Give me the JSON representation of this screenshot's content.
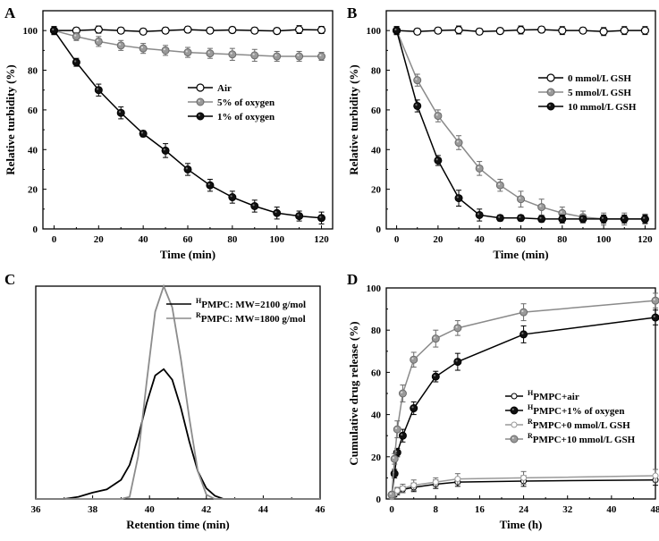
{
  "chart_data": [
    {
      "panel": "A",
      "type": "line",
      "xlabel": "Time (min)",
      "ylabel": "Relative turbidity (%)",
      "xlim": [
        -5,
        125
      ],
      "ylim": [
        0,
        110
      ],
      "xticks": [
        0,
        20,
        40,
        60,
        80,
        100,
        120
      ],
      "yticks": [
        0,
        20,
        40,
        60,
        80,
        100
      ],
      "legend_position": "middle-right",
      "series": [
        {
          "name": "Air",
          "marker": "open-circle",
          "color": "#000000",
          "x": [
            0,
            10,
            20,
            30,
            40,
            50,
            60,
            70,
            80,
            90,
            100,
            110,
            120
          ],
          "y": [
            100,
            100,
            100.5,
            100,
            99.5,
            100,
            100.5,
            100,
            100.3,
            100,
            99.8,
            100.5,
            100.3
          ],
          "err": [
            2,
            1.5,
            1.8,
            1.5,
            1.5,
            1.5,
            1.5,
            1.5,
            1.5,
            1.5,
            1.5,
            2,
            1.8
          ]
        },
        {
          "name": "5% of oxygen",
          "marker": "gray-circle",
          "color": "#8a8a8a",
          "x": [
            0,
            10,
            20,
            30,
            40,
            50,
            60,
            70,
            80,
            90,
            100,
            110,
            120
          ],
          "y": [
            100,
            97,
            94.5,
            92.5,
            91,
            90,
            89,
            88.5,
            88,
            87.5,
            87,
            87,
            87
          ],
          "err": [
            2,
            2,
            2.5,
            2.5,
            2.5,
            2.5,
            2.5,
            2.5,
            3,
            3,
            2.5,
            2.5,
            2
          ]
        },
        {
          "name": "1% of oxygen",
          "marker": "black-circle",
          "color": "#000000",
          "x": [
            0,
            10,
            20,
            30,
            40,
            50,
            60,
            70,
            80,
            90,
            100,
            110,
            120
          ],
          "y": [
            100,
            84,
            70,
            58.5,
            48,
            39.5,
            30,
            22,
            16,
            11.5,
            8,
            6.5,
            5.5
          ],
          "err": [
            2,
            2,
            3,
            3,
            1.5,
            3.5,
            3,
            3,
            3,
            3,
            3,
            2.5,
            3
          ]
        }
      ]
    },
    {
      "panel": "B",
      "type": "line",
      "xlabel": "Time (min)",
      "ylabel": "Relative turbidity (%)",
      "xlim": [
        -5,
        125
      ],
      "ylim": [
        0,
        110
      ],
      "xticks": [
        0,
        20,
        40,
        60,
        80,
        100,
        120
      ],
      "yticks": [
        0,
        20,
        40,
        60,
        80,
        100
      ],
      "legend_position": "middle-right",
      "series": [
        {
          "name": "0 mmol/L GSH",
          "marker": "open-circle",
          "color": "#000000",
          "x": [
            0,
            10,
            20,
            30,
            40,
            50,
            60,
            70,
            80,
            90,
            100,
            110,
            120
          ],
          "y": [
            100,
            99.5,
            100,
            100.3,
            99.5,
            99.8,
            100.3,
            100.5,
            100,
            100,
            99.5,
            100,
            100
          ],
          "err": [
            2,
            1.5,
            1.5,
            2,
            1.5,
            1.5,
            2,
            1.5,
            2,
            1.5,
            2,
            2,
            2
          ]
        },
        {
          "name": "5 mmol/L GSH",
          "marker": "gray-circle",
          "color": "#8a8a8a",
          "x": [
            0,
            10,
            20,
            30,
            40,
            50,
            60,
            70,
            80,
            90,
            100,
            110,
            120
          ],
          "y": [
            100,
            75,
            57,
            43.5,
            30.5,
            22,
            15,
            11,
            8,
            6,
            5,
            5,
            5
          ],
          "err": [
            2,
            3,
            3,
            3.5,
            3.5,
            3,
            4,
            4,
            3,
            3,
            3,
            3,
            2.5
          ]
        },
        {
          "name": "10 mmol/L GSH",
          "marker": "black-circle",
          "color": "#000000",
          "x": [
            0,
            10,
            20,
            30,
            40,
            50,
            60,
            70,
            80,
            90,
            100,
            110,
            120
          ],
          "y": [
            100,
            62,
            34.5,
            15.5,
            7,
            5.5,
            5.5,
            5,
            5,
            5,
            5,
            5,
            5
          ],
          "err": [
            2,
            3,
            2.5,
            4,
            3,
            1.5,
            1.5,
            1.5,
            2,
            1.5,
            2,
            2,
            2
          ]
        }
      ]
    },
    {
      "panel": "C",
      "type": "line",
      "xlabel": "Retention time (min)",
      "ylabel": "",
      "xlim": [
        36,
        46
      ],
      "ylim": [
        0,
        1
      ],
      "xticks": [
        36,
        38,
        40,
        42,
        44,
        46
      ],
      "yticks": [],
      "legend_position": "top-right",
      "series": [
        {
          "name_sup": "H",
          "name": "PMPC: MW=2100 g/mol",
          "color": "#000000",
          "x": [
            36,
            37,
            37.5,
            38,
            38.5,
            39,
            39.3,
            39.6,
            39.9,
            40.2,
            40.5,
            40.8,
            41.1,
            41.4,
            41.7,
            42,
            42.3,
            42.6,
            43,
            44,
            46
          ],
          "y": [
            0,
            0,
            0.01,
            0.03,
            0.045,
            0.09,
            0.16,
            0.29,
            0.45,
            0.58,
            0.61,
            0.56,
            0.43,
            0.27,
            0.13,
            0.05,
            0.015,
            0,
            0,
            0,
            0
          ]
        },
        {
          "name_sup": "R",
          "name": "PMPC: MW=1800 g/mol",
          "color": "#8c8c8c",
          "x": [
            36,
            39,
            39.3,
            39.6,
            39.9,
            40.2,
            40.5,
            40.8,
            41.1,
            41.4,
            41.7,
            42,
            42.3,
            42.6,
            46
          ],
          "y": [
            0,
            0,
            0.01,
            0.2,
            0.55,
            0.88,
            1.0,
            0.9,
            0.66,
            0.38,
            0.13,
            0.02,
            0,
            0,
            0
          ]
        }
      ]
    },
    {
      "panel": "D",
      "type": "line",
      "xlabel": "Time (h)",
      "ylabel": "Cumulative drug release (%)",
      "xlim": [
        -1,
        48
      ],
      "ylim": [
        0,
        100
      ],
      "xticks": [
        0,
        8,
        16,
        24,
        32,
        40,
        48
      ],
      "yticks": [
        0,
        20,
        40,
        60,
        80,
        100
      ],
      "legend_position": "bottom-right",
      "series": [
        {
          "name_sup": "H",
          "name": "PMPC+air",
          "marker": "open-circle-small",
          "color": "#000000",
          "x": [
            0,
            0.5,
            1,
            2,
            4,
            8,
            12,
            24,
            48
          ],
          "y": [
            1,
            2,
            3.5,
            4.5,
            5.5,
            7,
            8,
            8.5,
            9
          ],
          "err": [
            0.5,
            1,
            1.5,
            1.5,
            2,
            2,
            2,
            2.5,
            2.5
          ]
        },
        {
          "name_sup": "H",
          "name": "PMPC+1% of oxygen",
          "marker": "black-circle",
          "color": "#000000",
          "x": [
            0,
            0.5,
            1,
            2,
            4,
            8,
            12,
            24,
            48
          ],
          "y": [
            2,
            12,
            22,
            30,
            43,
            58,
            65,
            78,
            86
          ],
          "err": [
            1,
            2,
            2,
            3,
            3,
            2.5,
            4,
            4,
            3.5
          ]
        },
        {
          "name_sup": "R",
          "name": "PMPC+0 mmol/L GSH",
          "marker": "open-circle-small-gray",
          "color": "#999999",
          "x": [
            0,
            0.5,
            1,
            2,
            4,
            8,
            12,
            24,
            48
          ],
          "y": [
            1,
            2.5,
            4,
            5,
            6.5,
            8,
            9.5,
            10,
            11
          ],
          "err": [
            0.5,
            1,
            1.5,
            2,
            2.5,
            2,
            2.5,
            3,
            3
          ]
        },
        {
          "name_sup": "R",
          "name": "PMPC+10 mmol/L GSH",
          "marker": "gray-circle",
          "color": "#8a8a8a",
          "x": [
            0,
            0.5,
            1,
            2,
            4,
            8,
            12,
            24,
            48
          ],
          "y": [
            2,
            19,
            33,
            50,
            66,
            76,
            81,
            88.5,
            94
          ],
          "err": [
            1,
            2.5,
            4,
            4,
            3.5,
            4,
            3.5,
            4,
            3.5
          ]
        }
      ]
    }
  ]
}
